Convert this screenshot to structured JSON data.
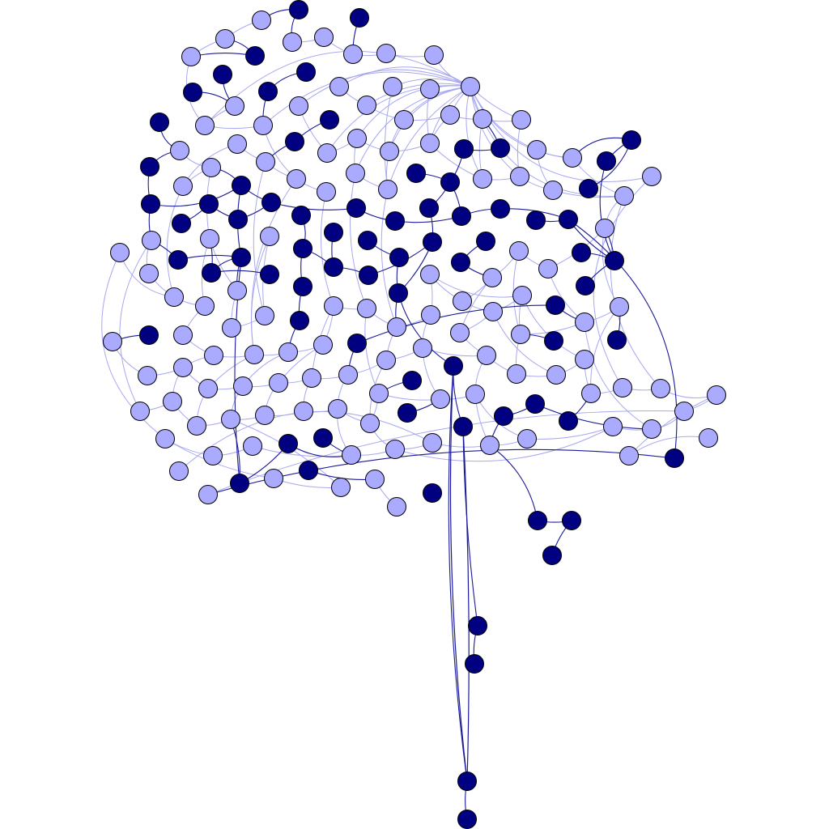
{
  "graph": {
    "type": "network",
    "colors": {
      "light_node": "#aaaaff",
      "dark_node": "#000080",
      "light_edge": "#a8a8f0",
      "dark_edge": "#1a1a9a",
      "node_outline": "#000000",
      "background": "#ffffff"
    },
    "node_group_counts": {
      "light": 173,
      "dark": 76
    }
  }
}
